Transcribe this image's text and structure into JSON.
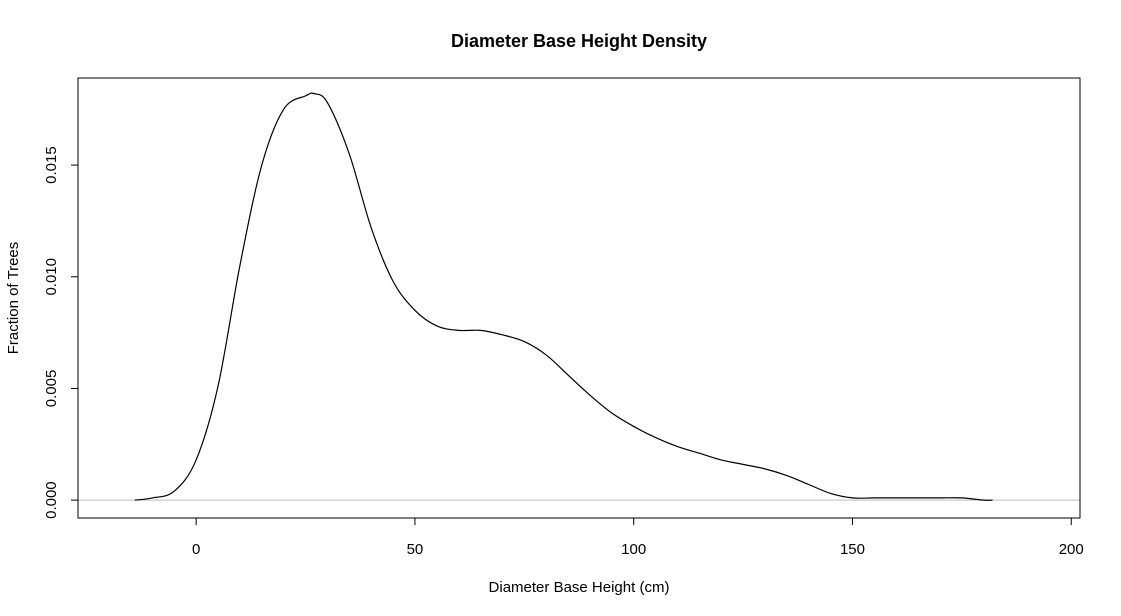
{
  "chart_data": {
    "type": "line",
    "title": "Diameter Base Height Density",
    "xlabel": "Diameter Base Height (cm)",
    "ylabel": "Fraction of Trees",
    "xlim": [
      -27,
      202
    ],
    "ylim": [
      -0.0008,
      0.0189
    ],
    "x_ticks": [
      0,
      50,
      100,
      150,
      200
    ],
    "x_tick_labels": [
      "0",
      "50",
      "100",
      "150",
      "200"
    ],
    "y_ticks": [
      0,
      0.005,
      0.01,
      0.015
    ],
    "y_tick_labels": [
      "0.000",
      "0.005",
      "0.010",
      "0.015"
    ],
    "baseline": 0,
    "grid": false,
    "series": [
      {
        "color": "#000000",
        "x": [
          -14,
          -10,
          -5,
          0,
          5,
          10,
          15,
          20,
          25,
          27,
          30,
          35,
          40,
          45,
          50,
          55,
          60,
          65,
          70,
          75,
          80,
          85,
          90,
          95,
          100,
          105,
          110,
          115,
          120,
          125,
          130,
          135,
          140,
          145,
          150,
          155,
          160,
          165,
          170,
          175,
          180,
          182
        ],
        "y": [
          0.0,
          0.0001,
          0.0004,
          0.0018,
          0.0051,
          0.0105,
          0.015,
          0.0175,
          0.0181,
          0.0182,
          0.0178,
          0.0155,
          0.0122,
          0.0098,
          0.0085,
          0.0078,
          0.0076,
          0.0076,
          0.0074,
          0.0071,
          0.0065,
          0.0056,
          0.0047,
          0.0039,
          0.0033,
          0.0028,
          0.0024,
          0.0021,
          0.0018,
          0.0016,
          0.0014,
          0.0011,
          0.0007,
          0.0003,
          0.0001,
          0.0001,
          0.0001,
          0.0001,
          0.0001,
          0.0001,
          0.0,
          0.0
        ]
      }
    ]
  }
}
